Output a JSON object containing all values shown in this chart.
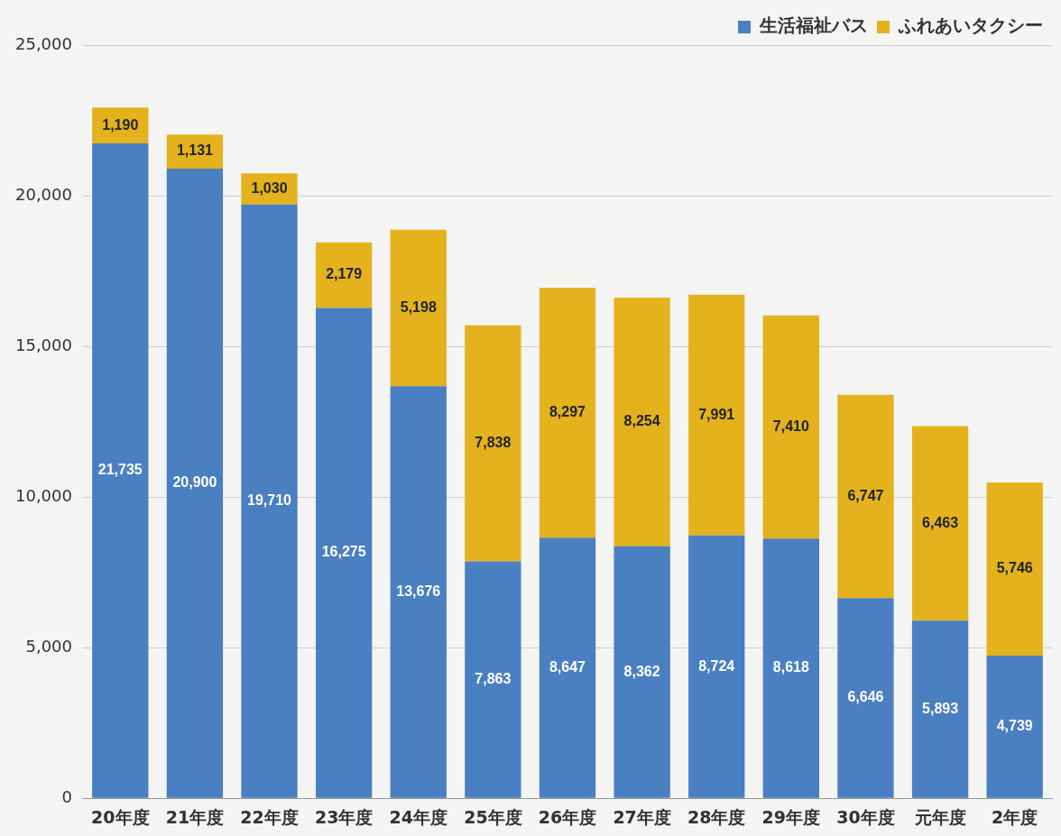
{
  "chart_data": {
    "type": "bar",
    "stacked": true,
    "categories": [
      "20年度",
      "21年度",
      "22年度",
      "23年度",
      "24年度",
      "25年度",
      "26年度",
      "27年度",
      "28年度",
      "29年度",
      "30年度",
      "元年度",
      "2年度"
    ],
    "series": [
      {
        "name": "生活福祉バス",
        "color": "#4a7fc1",
        "values": [
          21735,
          20900,
          19710,
          16275,
          13676,
          7863,
          8647,
          8362,
          8724,
          8618,
          6646,
          5893,
          4739
        ],
        "value_labels": [
          "21,735",
          "20,900",
          "19,710",
          "16,275",
          "13,676",
          "7,863",
          "8,647",
          "8,362",
          "8,724",
          "8,618",
          "6,646",
          "5,893",
          "4,739"
        ]
      },
      {
        "name": "ふれあいタクシー",
        "color": "#e3b21c",
        "values": [
          1190,
          1131,
          1030,
          2179,
          5198,
          7838,
          8297,
          8254,
          7991,
          7410,
          6747,
          6463,
          5746
        ],
        "value_labels": [
          "1,190",
          "1,131",
          "1,030",
          "2,179",
          "5,198",
          "7,838",
          "8,297",
          "8,254",
          "7,991",
          "7,410",
          "6,747",
          "6,463",
          "5,746"
        ]
      }
    ],
    "ylim": [
      0,
      25000
    ],
    "yticks": [
      0,
      {
        "value": 5000,
        "label": "5,000"
      },
      {
        "value": 10000,
        "label": "10,000"
      },
      {
        "value": 15000,
        "label": "15,000"
      },
      {
        "value": 20000,
        "label": "20,000"
      },
      {
        "value": 25000,
        "label": "25,000"
      }
    ],
    "grid": "y",
    "legend": "top right"
  }
}
